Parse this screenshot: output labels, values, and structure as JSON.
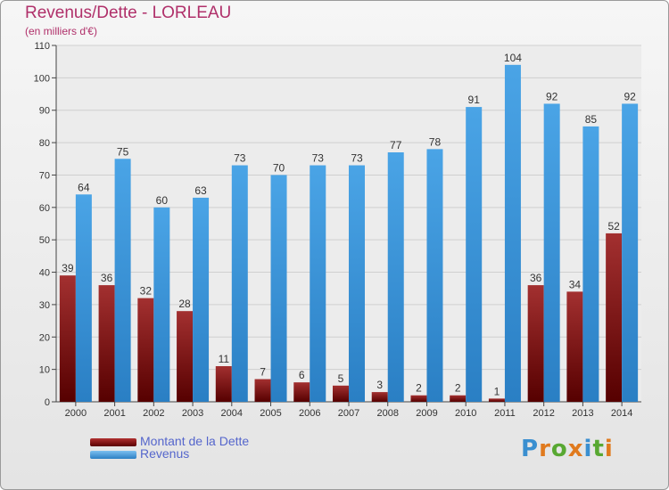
{
  "chart_data": {
    "type": "bar",
    "title": "Revenus/Dette - LORLEAU",
    "subtitle": "(en milliers d'€)",
    "categories": [
      "2000",
      "2001",
      "2002",
      "2003",
      "2004",
      "2005",
      "2006",
      "2007",
      "2008",
      "2009",
      "2010",
      "2011",
      "2012",
      "2013",
      "2014"
    ],
    "series": [
      {
        "name": "Montant de la Dette",
        "color": "#7a1818",
        "values": [
          39,
          36,
          32,
          28,
          11,
          7,
          6,
          5,
          3,
          2,
          2,
          1,
          36,
          34,
          52
        ]
      },
      {
        "name": "Revenus",
        "color": "#3a95dd",
        "values": [
          64,
          75,
          60,
          63,
          73,
          70,
          73,
          73,
          77,
          78,
          91,
          104,
          92,
          85,
          92
        ]
      }
    ],
    "ylim": [
      0,
      110
    ],
    "yticks": [
      0,
      10,
      20,
      30,
      40,
      50,
      60,
      70,
      80,
      90,
      100,
      110
    ],
    "grid": true,
    "legend": "bottom-left"
  },
  "logo": {
    "text": "Proxiti",
    "letter_colors": [
      "#3a8fd0",
      "#e07a1e",
      "#58a832",
      "#e07a1e",
      "#3a8fd0",
      "#58a832",
      "#e07a1e"
    ]
  }
}
